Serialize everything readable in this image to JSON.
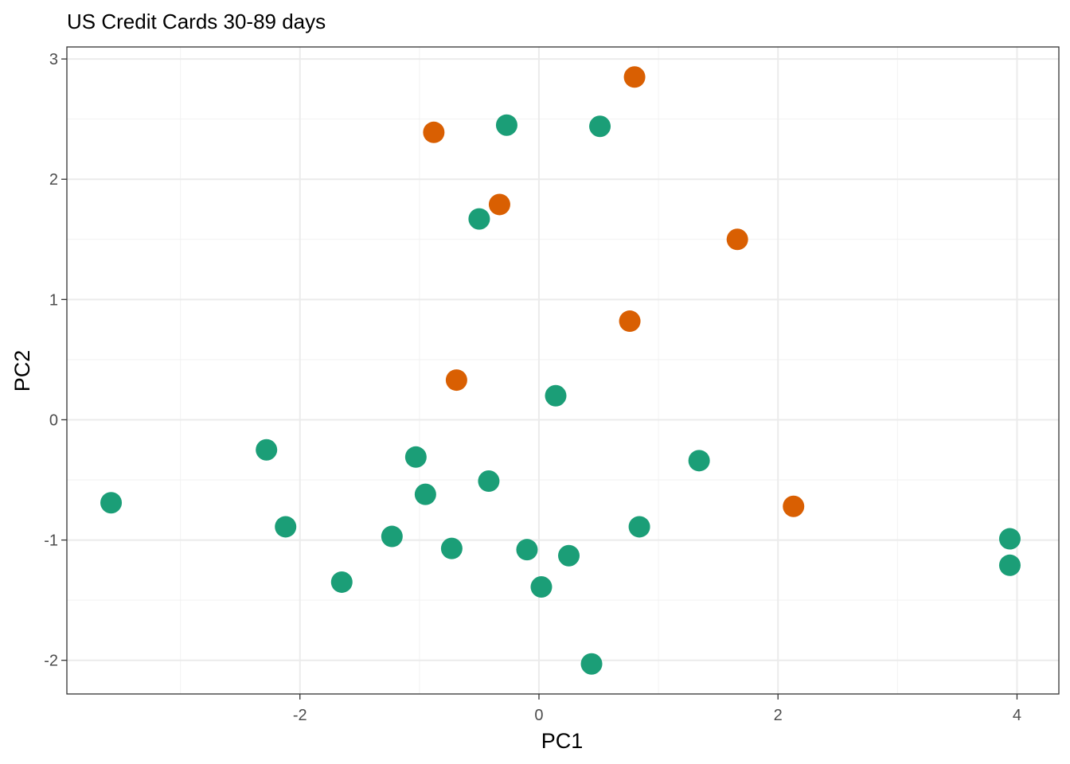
{
  "chart_data": {
    "type": "scatter",
    "title": "US Credit Cards 30-89 days",
    "xlabel": "PC1",
    "ylabel": "PC2",
    "xlim": [
      -3.95,
      4.35
    ],
    "ylim": [
      -2.28,
      3.1
    ],
    "x_ticks": [
      -2,
      0,
      2,
      4
    ],
    "y_ticks": [
      -2,
      -1,
      0,
      1,
      2,
      3
    ],
    "x_tick_labels": [
      "-2",
      "0",
      "2",
      "4"
    ],
    "y_tick_labels": [
      "-2",
      "-1",
      "0",
      "1",
      "2",
      "3"
    ],
    "grid": true,
    "legend": "none",
    "series": [
      {
        "color": "#1b9e77",
        "points": [
          {
            "x": -3.58,
            "y": -0.69
          },
          {
            "x": -2.28,
            "y": -0.25
          },
          {
            "x": -2.12,
            "y": -0.89
          },
          {
            "x": -1.65,
            "y": -1.35
          },
          {
            "x": -1.23,
            "y": -0.97
          },
          {
            "x": -1.03,
            "y": -0.31
          },
          {
            "x": -0.95,
            "y": -0.62
          },
          {
            "x": -0.73,
            "y": -1.07
          },
          {
            "x": -0.5,
            "y": 1.67
          },
          {
            "x": -0.42,
            "y": -0.51
          },
          {
            "x": -0.27,
            "y": 2.45
          },
          {
            "x": -0.1,
            "y": -1.08
          },
          {
            "x": 0.02,
            "y": -1.39
          },
          {
            "x": 0.14,
            "y": 0.2
          },
          {
            "x": 0.25,
            "y": -1.13
          },
          {
            "x": 0.44,
            "y": -2.03
          },
          {
            "x": 0.51,
            "y": 2.44
          },
          {
            "x": 0.84,
            "y": -0.89
          },
          {
            "x": 1.34,
            "y": -0.34
          },
          {
            "x": 3.94,
            "y": -0.99
          },
          {
            "x": 3.94,
            "y": -1.21
          }
        ]
      },
      {
        "color": "#d95f02",
        "points": [
          {
            "x": -0.88,
            "y": 2.39
          },
          {
            "x": -0.69,
            "y": 0.33
          },
          {
            "x": -0.33,
            "y": 1.79
          },
          {
            "x": 0.76,
            "y": 0.82
          },
          {
            "x": 0.8,
            "y": 2.85
          },
          {
            "x": 1.66,
            "y": 1.5
          },
          {
            "x": 2.13,
            "y": -0.72
          }
        ]
      }
    ]
  }
}
